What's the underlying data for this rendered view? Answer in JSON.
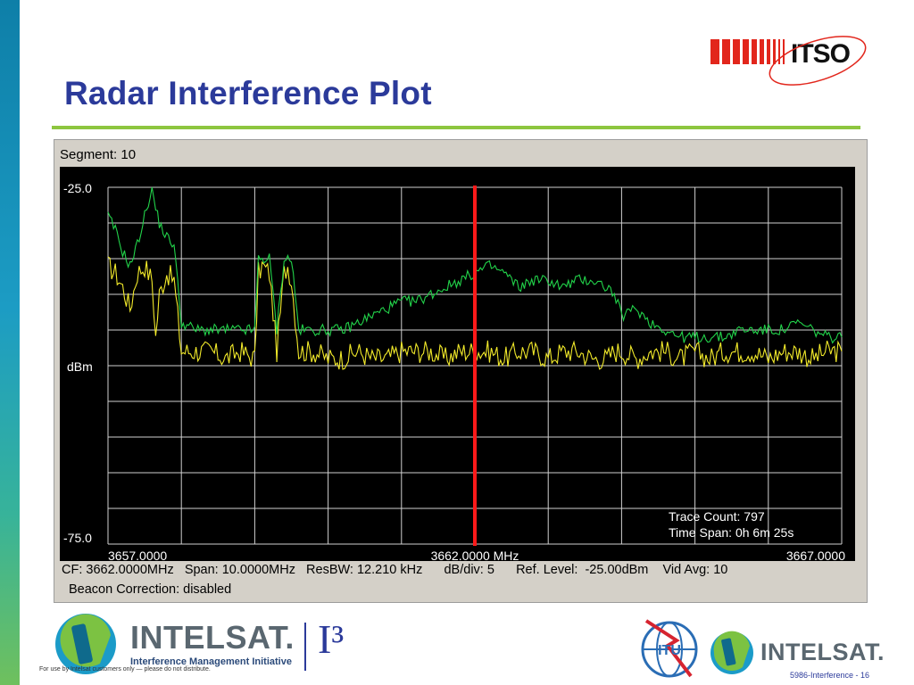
{
  "slide": {
    "title": "Radar Interference Plot",
    "itso_logo_text": "ITSO",
    "footer_note": "For use by Intelsat customers only — please do not distribute.",
    "page_number": "5986-Interference - 16",
    "intelsat_word": "INTELSAT.",
    "i3_text": "I³",
    "imi_text": "Interference Management Initiative",
    "itu_text": "ITU",
    "colors": {
      "title": "#2b3a9a",
      "rule": "#8dc63f",
      "itso_red": "#e2261c"
    }
  },
  "analyzer": {
    "segment_label": "Segment: 10",
    "status_line1": "CF: 3662.0000MHz   Span: 10.0000MHz   ResBW: 12.210 kHz      dB/div: 5      Ref. Level:  -25.00dBm    Vid Avg: 10",
    "status_line2": "Beacon Correction: disabled",
    "trace_count": "Trace Count: 797",
    "time_span": "Time Span: 0h 6m 25s"
  },
  "chart_data": {
    "type": "line",
    "title": "",
    "xlabel": "",
    "ylabel": "dBm",
    "xlim": [
      3657.0,
      3667.0
    ],
    "ylim": [
      -75.0,
      -25.0
    ],
    "x_tick_labels": [
      "3657.0000",
      "3662.0000 MHz",
      "3667.0000"
    ],
    "y_tick_labels": [
      "-25.0",
      "dBm",
      "-75.0"
    ],
    "grid": true,
    "marker_x": 3662.0,
    "colors": {
      "background": "#000000",
      "grid": "#d0d0d0",
      "max_trace": "#22d34a",
      "avg_trace": "#f2ea2a",
      "marker": "#ff1a1a"
    },
    "series": [
      {
        "x": [
          3657.0,
          3657.1,
          3657.2,
          3657.3,
          3657.4,
          3657.5,
          3657.6,
          3657.65,
          3657.7,
          3657.8,
          3657.9,
          3658.0,
          3658.2,
          3658.4,
          3658.6,
          3658.8,
          3659.0,
          3659.05,
          3659.1,
          3659.2,
          3659.3,
          3659.4,
          3659.45,
          3659.5,
          3659.6,
          3659.8,
          3660.0,
          3660.2,
          3660.4,
          3660.6,
          3660.8,
          3661.0,
          3661.2,
          3661.4,
          3661.6,
          3661.8,
          3662.0,
          3662.2,
          3662.4,
          3662.6,
          3662.8,
          3663.0,
          3663.2,
          3663.4,
          3663.6,
          3663.8,
          3663.9,
          3664.0,
          3664.2,
          3664.4,
          3664.6,
          3664.8,
          3665.0,
          3665.2,
          3665.4,
          3665.6,
          3665.8,
          3666.0,
          3666.2,
          3666.4,
          3666.6,
          3666.8,
          3667.0
        ],
        "values": [
          -29,
          -31,
          -34,
          -36,
          -33,
          -29,
          -25,
          -28,
          -30,
          -32,
          -33,
          -44,
          -45,
          -45,
          -45,
          -45,
          -45,
          -35,
          -35,
          -35,
          -45,
          -35,
          -35,
          -35,
          -45,
          -45,
          -45,
          -45,
          -44,
          -43,
          -42,
          -41,
          -41,
          -40,
          -39,
          -38,
          -37,
          -36,
          -37,
          -39,
          -38,
          -38,
          -39,
          -38,
          -38,
          -39,
          -40,
          -43,
          -42,
          -44,
          -45,
          -46,
          -46,
          -46,
          -46,
          -45,
          -45,
          -45,
          -45,
          -44,
          -45,
          -46,
          -46
        ]
      },
      {
        "x": [
          3657.0,
          3657.1,
          3657.2,
          3657.3,
          3657.4,
          3657.5,
          3657.6,
          3657.65,
          3657.7,
          3657.8,
          3657.9,
          3658.0,
          3658.2,
          3658.4,
          3658.6,
          3658.8,
          3659.0,
          3659.05,
          3659.1,
          3659.2,
          3659.3,
          3659.4,
          3659.45,
          3659.5,
          3659.6,
          3659.8,
          3660.0,
          3660.2,
          3660.4,
          3660.6,
          3660.8,
          3661.0,
          3661.2,
          3661.4,
          3661.6,
          3661.8,
          3662.0,
          3662.2,
          3662.4,
          3662.6,
          3662.8,
          3663.0,
          3663.2,
          3663.4,
          3663.6,
          3663.8,
          3663.9,
          3664.0,
          3664.2,
          3664.4,
          3664.6,
          3664.8,
          3665.0,
          3665.2,
          3665.4,
          3665.6,
          3665.8,
          3666.0,
          3666.2,
          3666.4,
          3666.6,
          3666.8,
          3667.0
        ],
        "values": [
          -36,
          -37,
          -39,
          -42,
          -37,
          -36,
          -38,
          -46,
          -40,
          -37,
          -38,
          -48,
          -48,
          -48,
          -49,
          -48,
          -49,
          -37,
          -36,
          -37,
          -48,
          -37,
          -36,
          -38,
          -48,
          -48,
          -49,
          -49,
          -48,
          -49,
          -49,
          -48,
          -48,
          -48,
          -49,
          -48,
          -48,
          -48,
          -49,
          -48,
          -48,
          -49,
          -48,
          -48,
          -49,
          -49,
          -48,
          -48,
          -49,
          -48,
          -48,
          -49,
          -48,
          -49,
          -48,
          -48,
          -48,
          -49,
          -48,
          -48,
          -49,
          -48,
          -48
        ]
      }
    ]
  }
}
